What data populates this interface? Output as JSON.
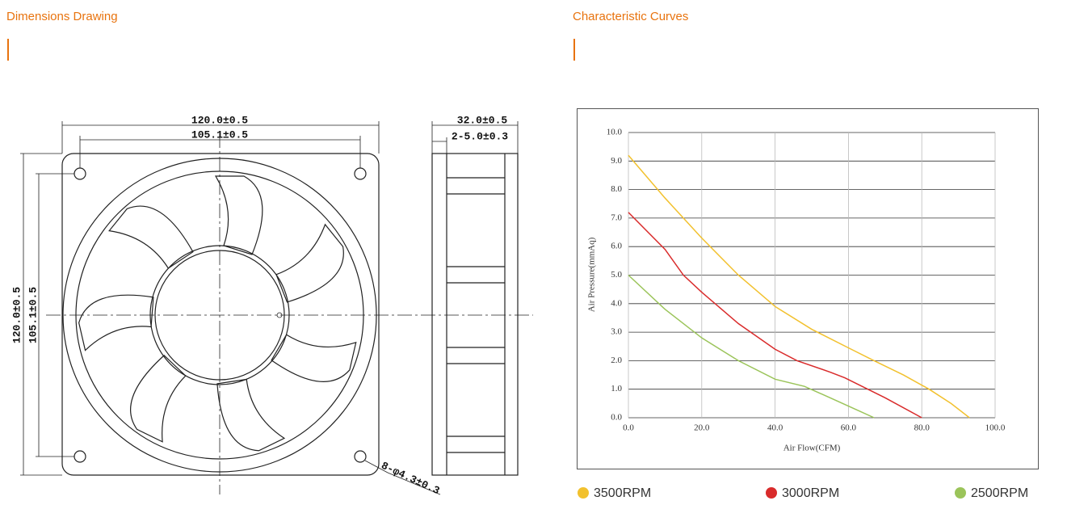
{
  "sections": {
    "left_title": "Dimensions Drawing",
    "right_title": "Characteristic Curves"
  },
  "drawing": {
    "width_outer": "120.0±0.5",
    "width_hole": "105.1±0.5",
    "depth": "32.0±0.5",
    "flange": "2-5.0±0.3",
    "height_outer": "120.0±0.5",
    "height_hole": "105.1±0.5",
    "holes": "8-φ4.3±0.3"
  },
  "chart_data": {
    "type": "line",
    "xlabel": "Air Flow(CFM)",
    "ylabel": "Air Pressure(mmAq)",
    "xlim": [
      0,
      100
    ],
    "ylim": [
      0,
      10
    ],
    "xticks": [
      {
        "value": 0,
        "label": "0.0"
      },
      {
        "value": 20,
        "label": "20.0"
      },
      {
        "value": 40,
        "label": "40.0"
      },
      {
        "value": 60,
        "label": "60.0"
      },
      {
        "value": 80,
        "label": "80.0"
      },
      {
        "value": 100,
        "label": "100.0"
      }
    ],
    "yticks": [
      {
        "value": 0,
        "label": "0.0"
      },
      {
        "value": 1,
        "label": "1.0"
      },
      {
        "value": 2,
        "label": "2.0"
      },
      {
        "value": 3,
        "label": "3.0"
      },
      {
        "value": 4,
        "label": "4.0"
      },
      {
        "value": 5,
        "label": "5.0"
      },
      {
        "value": 6,
        "label": "6.0"
      },
      {
        "value": 7,
        "label": "7.0"
      },
      {
        "value": 8,
        "label": "8.0"
      },
      {
        "value": 9,
        "label": "9.0"
      },
      {
        "value": 10,
        "label": "10.0"
      }
    ],
    "grid": true,
    "series": [
      {
        "name": "3500RPM",
        "color": "#f2c12e",
        "x": [
          0,
          10,
          20,
          30,
          40,
          50,
          60,
          67,
          75,
          82,
          88,
          93
        ],
        "values": [
          9.2,
          7.7,
          6.3,
          5.0,
          3.9,
          3.1,
          2.45,
          2.0,
          1.5,
          1.0,
          0.5,
          0
        ]
      },
      {
        "name": "3000RPM",
        "color": "#d92b2b",
        "x": [
          0,
          10,
          15,
          20,
          30,
          40,
          46,
          55,
          59,
          70,
          80
        ],
        "values": [
          7.2,
          5.9,
          5.0,
          4.4,
          3.3,
          2.4,
          2.0,
          1.6,
          1.4,
          0.7,
          0
        ]
      },
      {
        "name": "2500RPM",
        "color": "#9bc45a",
        "x": [
          0,
          10,
          20,
          30,
          40,
          48,
          55,
          67
        ],
        "values": [
          5.0,
          3.8,
          2.8,
          2.0,
          1.35,
          1.1,
          0.7,
          0
        ]
      }
    ]
  }
}
